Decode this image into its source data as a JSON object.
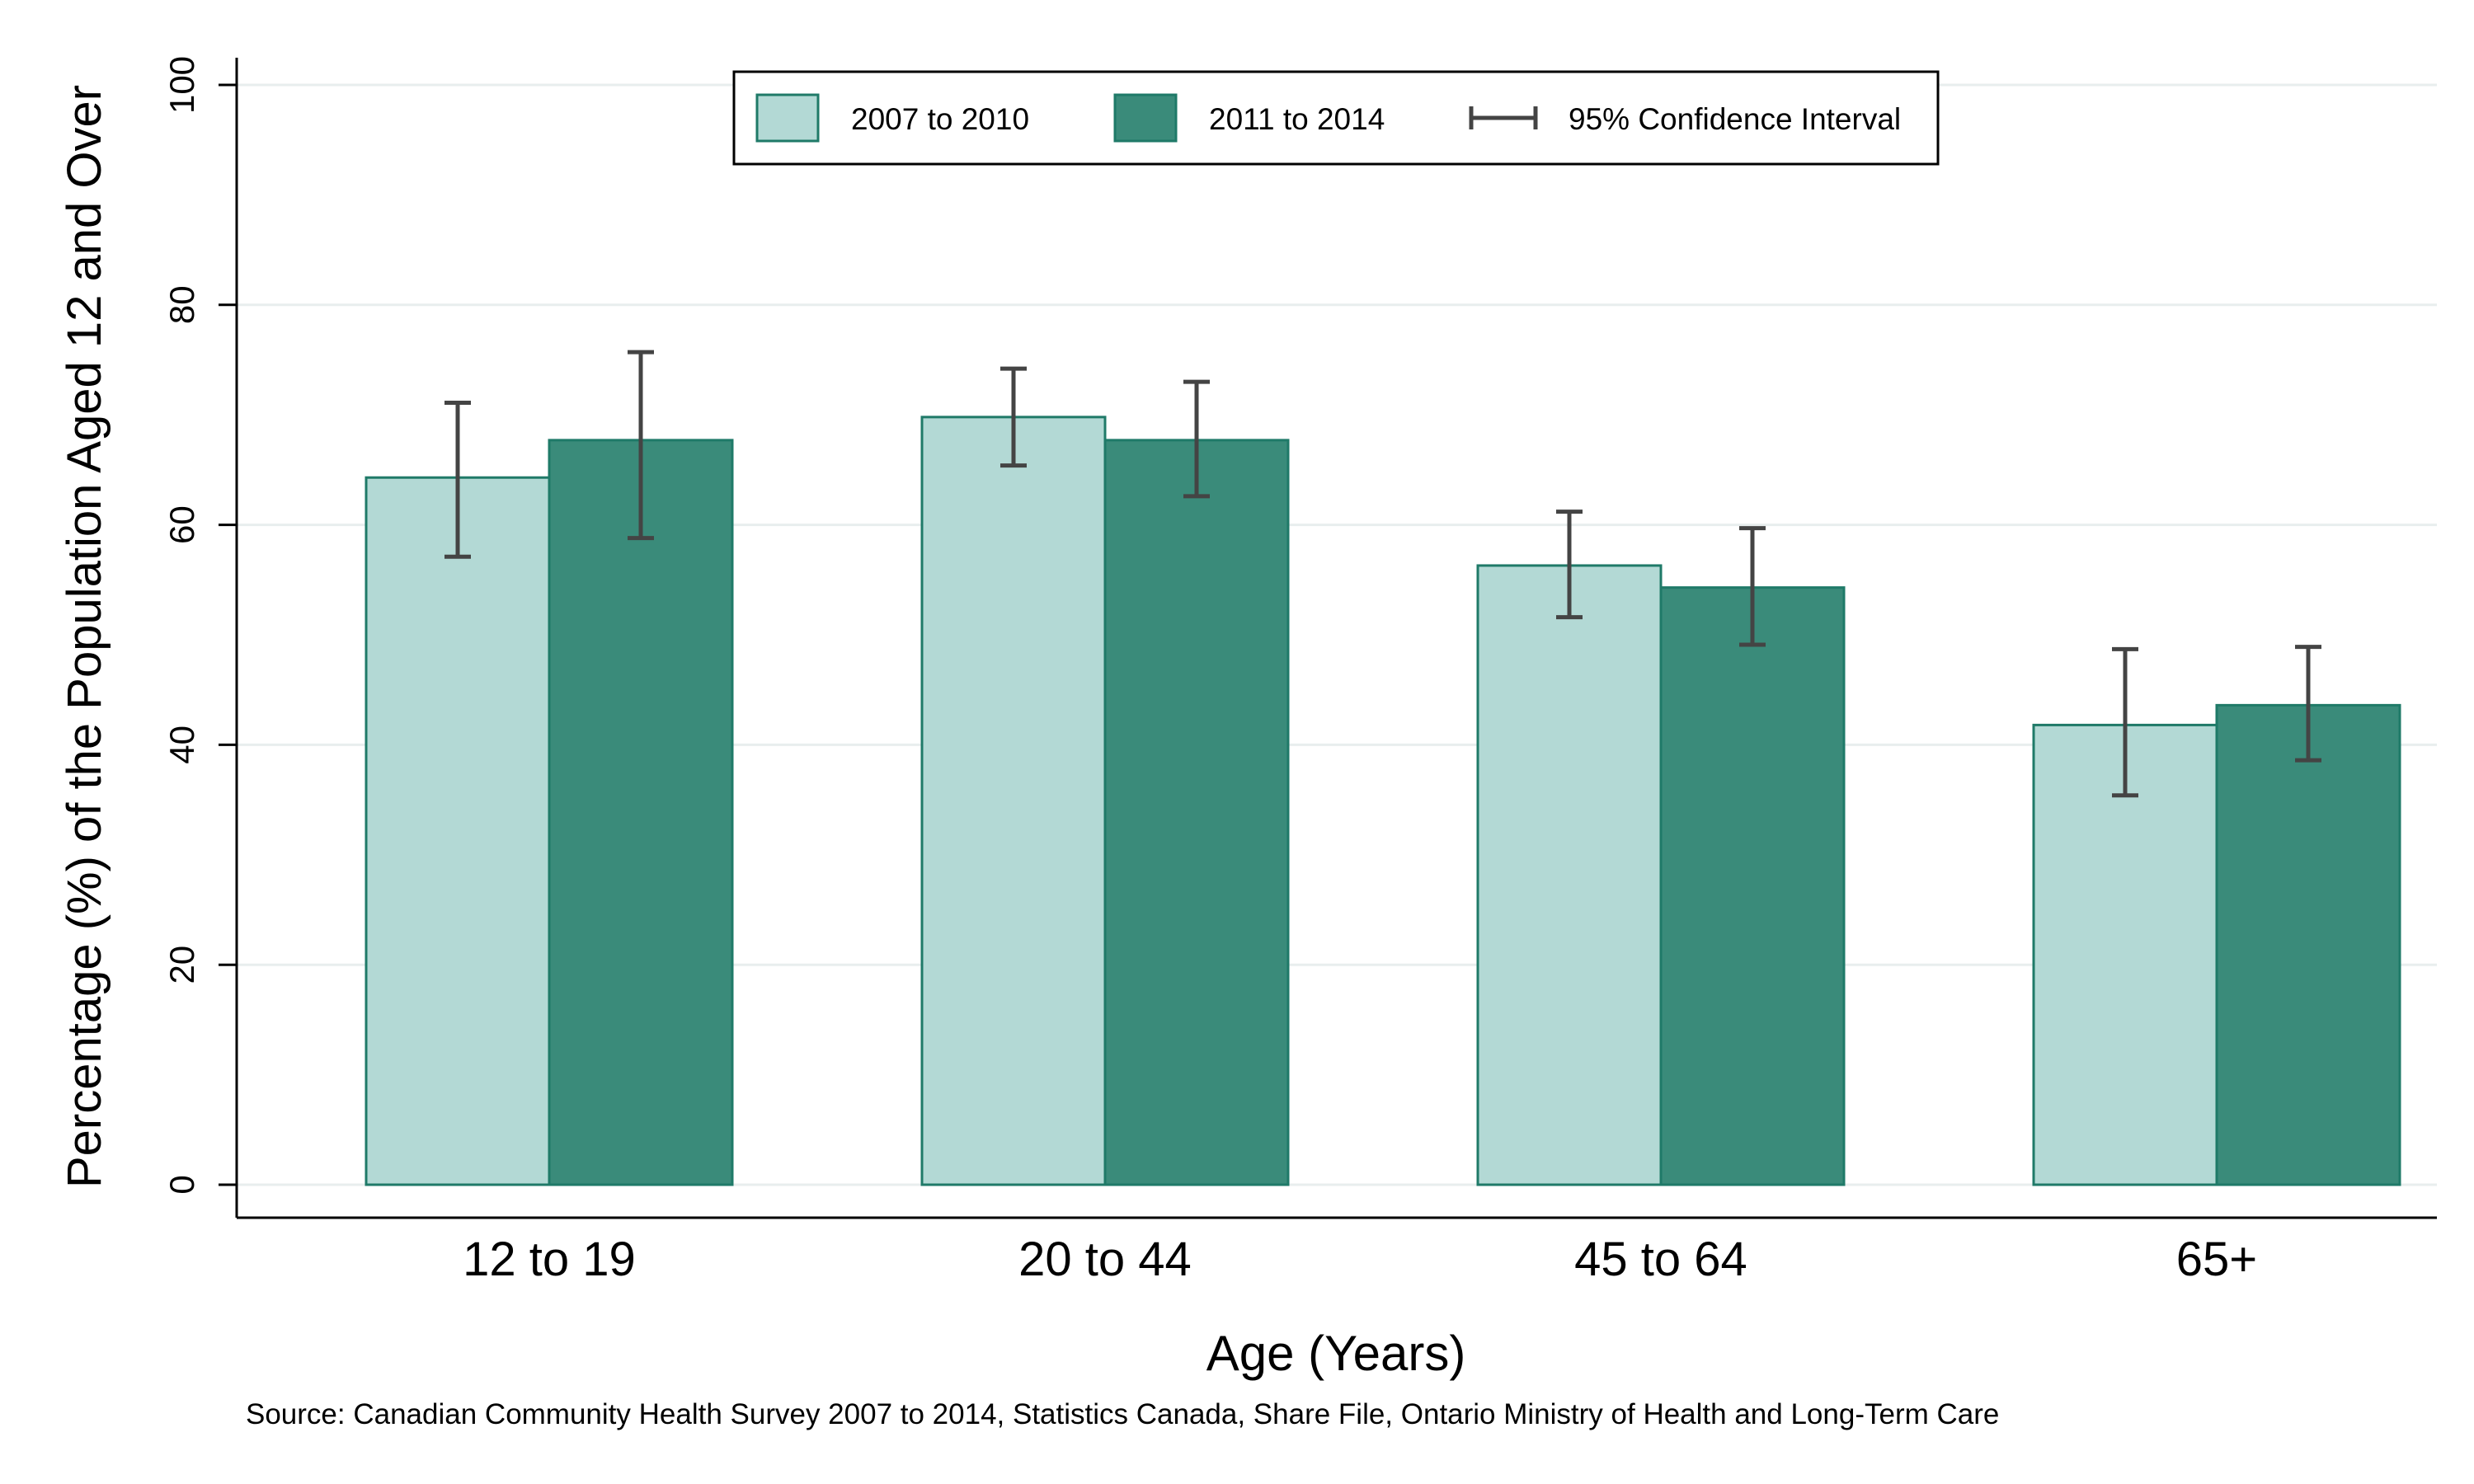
{
  "chart_data": {
    "type": "bar",
    "xlabel": "Age (Years)",
    "ylabel": "Percentage (%) of the Population Aged 12 and Over",
    "ylim": [
      0,
      100
    ],
    "yticks": [
      "0",
      "20",
      "40",
      "60",
      "80",
      "100"
    ],
    "categories": [
      "12 to 19",
      "20 to 44",
      "45 to 64",
      "65+"
    ],
    "series": [
      {
        "name": "2007 to 2010",
        "color": "#b3d9d5",
        "values": [
          64.3,
          69.8,
          56.3,
          41.8
        ],
        "ci_low": [
          57.1,
          65.4,
          51.6,
          35.4
        ],
        "ci_high": [
          71.1,
          74.2,
          61.2,
          48.7
        ]
      },
      {
        "name": "2011 to 2014",
        "color": "#3a8b7a",
        "values": [
          67.7,
          67.7,
          54.3,
          43.6
        ],
        "ci_low": [
          58.8,
          62.6,
          49.1,
          38.6
        ],
        "ci_high": [
          75.7,
          73.0,
          59.7,
          48.9
        ]
      }
    ],
    "legend": {
      "placement": "top",
      "ci_label": "95% Confidence Interval"
    },
    "grid": true,
    "source": "Source: Canadian Community Health Survey 2007 to 2014, Statistics Canada, Share File, Ontario Ministry of Health and Long-Term Care"
  }
}
